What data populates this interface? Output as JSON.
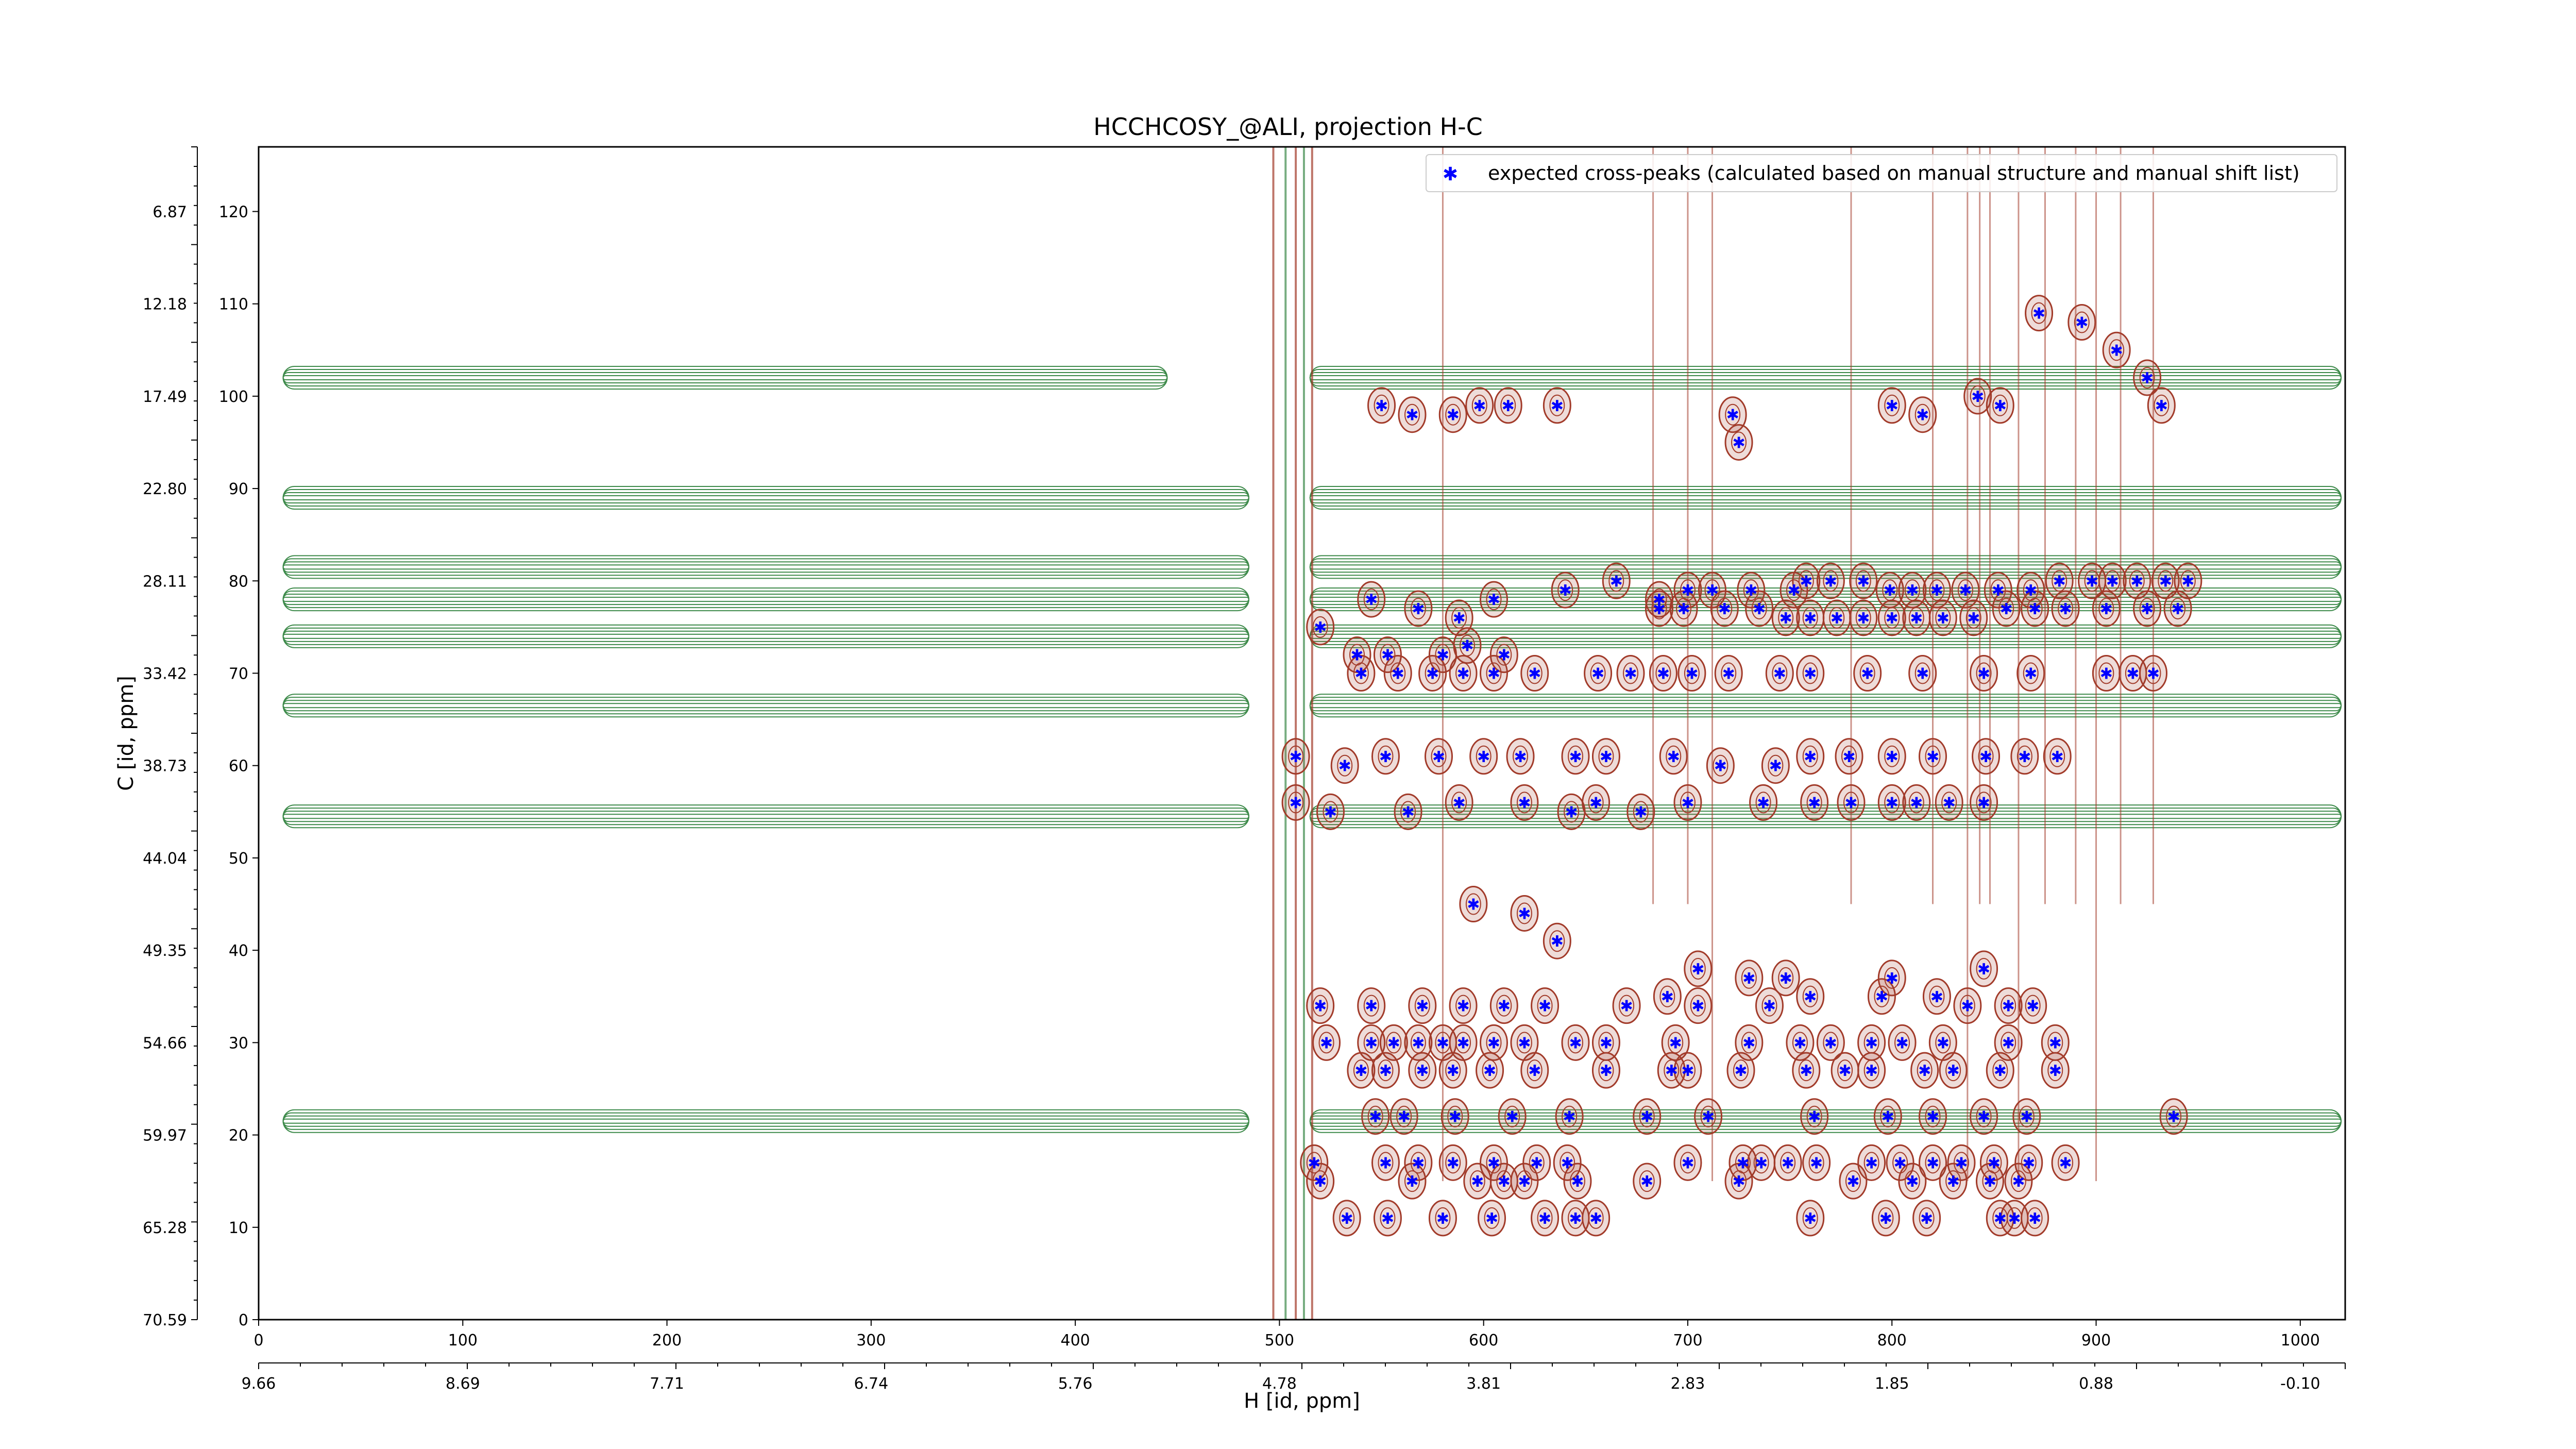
{
  "chart_data": {
    "type": "scatter",
    "title": "HCCHCOSY_@ALI, projection H-C",
    "xlabel": "H [id, ppm]",
    "ylabel": "C [id, ppm]",
    "xlim": [
      0,
      1022
    ],
    "ylim": [
      0,
      127
    ],
    "x_ticks_top": [
      "0",
      "100",
      "200",
      "300",
      "400",
      "500",
      "600",
      "700",
      "800",
      "900",
      "1000"
    ],
    "x_ticks_top_values": [
      0,
      100,
      200,
      300,
      400,
      500,
      600,
      700,
      800,
      900,
      1000
    ],
    "x_ticks_ppm": [
      "9.66",
      "8.69",
      "7.71",
      "6.74",
      "5.76",
      "4.78",
      "3.81",
      "2.83",
      "1.85",
      "0.88",
      "-0.10"
    ],
    "y_ticks_right": [
      "0",
      "10",
      "20",
      "30",
      "40",
      "50",
      "60",
      "70",
      "80",
      "90",
      "100",
      "110",
      "120"
    ],
    "y_ticks_right_values": [
      0,
      10,
      20,
      30,
      40,
      50,
      60,
      70,
      80,
      90,
      100,
      110,
      120
    ],
    "y_ticks_ppm": [
      "70.59",
      "65.28",
      "59.97",
      "54.66",
      "49.35",
      "44.04",
      "38.73",
      "33.42",
      "28.11",
      "22.80",
      "17.49",
      "12.18",
      "6.87"
    ],
    "legend": {
      "position": "top-right",
      "label": "expected cross-peaks (calculated based on manual structure and manual shift list)"
    },
    "colors": {
      "expected_marker": "#0000ff",
      "positive_contour": "#a23b2a",
      "negative_contour": "#3d8a4a"
    },
    "contour_bands_y": [
      102,
      89,
      81.5,
      78,
      74,
      66.5,
      54.5,
      21.5
    ],
    "expected_peaks": {
      "x": [
        550,
        565,
        585,
        598,
        612,
        636,
        722,
        725,
        800,
        815,
        842,
        853,
        872,
        893,
        910,
        925,
        932,
        520,
        545,
        568,
        588,
        605,
        640,
        665,
        686,
        700,
        712,
        731,
        752,
        758,
        770,
        786,
        799,
        810,
        822,
        836,
        852,
        868,
        882,
        898,
        908,
        920,
        934,
        945,
        538,
        553,
        580,
        592,
        610,
        686,
        698,
        718,
        735,
        748,
        760,
        773,
        786,
        800,
        812,
        825,
        840,
        856,
        870,
        885,
        905,
        925,
        940,
        540,
        558,
        575,
        590,
        605,
        625,
        656,
        672,
        688,
        702,
        720,
        745,
        760,
        788,
        815,
        845,
        868,
        905,
        918,
        928,
        508,
        532,
        552,
        578,
        600,
        618,
        645,
        660,
        693,
        716,
        743,
        760,
        779,
        800,
        820,
        846,
        865,
        881,
        508,
        525,
        563,
        588,
        620,
        643,
        655,
        677,
        700,
        737,
        762,
        780,
        800,
        812,
        828,
        845,
        520,
        545,
        570,
        590,
        610,
        630,
        670,
        690,
        705,
        740,
        760,
        795,
        822,
        837,
        857,
        869,
        523,
        545,
        556,
        568,
        580,
        590,
        605,
        620,
        645,
        660,
        694,
        730,
        755,
        770,
        790,
        805,
        825,
        857,
        880,
        595,
        620,
        636,
        705,
        730,
        748,
        800,
        845,
        540,
        552,
        570,
        585,
        603,
        625,
        660,
        692,
        700,
        726,
        758,
        777,
        790,
        816,
        830,
        853,
        880,
        547,
        561,
        586,
        614,
        642,
        680,
        710,
        762,
        798,
        820,
        845,
        866,
        938,
        517,
        552,
        568,
        585,
        605,
        626,
        641,
        700,
        727,
        736,
        749,
        763,
        790,
        804,
        820,
        834,
        850,
        867,
        885,
        520,
        565,
        597,
        610,
        620,
        646,
        680,
        725,
        781,
        810,
        830,
        848,
        862,
        533,
        553,
        580,
        604,
        630,
        645,
        655,
        760,
        797,
        817,
        853,
        860,
        870
      ],
      "y": [
        99,
        98,
        98,
        99,
        99,
        99,
        98,
        95,
        99,
        98,
        100,
        99,
        109,
        108,
        105,
        102,
        99,
        75,
        78,
        77,
        76,
        78,
        79,
        80,
        78,
        79,
        79,
        79,
        79,
        80,
        80,
        80,
        79,
        79,
        79,
        79,
        79,
        79,
        80,
        80,
        80,
        80,
        80,
        80,
        72,
        72,
        72,
        73,
        72,
        77,
        77,
        77,
        77,
        76,
        76,
        76,
        76,
        76,
        76,
        76,
        76,
        77,
        77,
        77,
        77,
        77,
        77,
        70,
        70,
        70,
        70,
        70,
        70,
        70,
        70,
        70,
        70,
        70,
        70,
        70,
        70,
        70,
        70,
        70,
        70,
        70,
        70,
        61,
        60,
        61,
        61,
        61,
        61,
        61,
        61,
        61,
        60,
        60,
        61,
        61,
        61,
        61,
        61,
        61,
        61,
        56,
        55,
        55,
        56,
        56,
        55,
        56,
        55,
        56,
        56,
        56,
        56,
        56,
        56,
        56,
        56,
        34,
        34,
        34,
        34,
        34,
        34,
        34,
        35,
        34,
        34,
        35,
        35,
        35,
        34,
        34,
        34,
        30,
        30,
        30,
        30,
        30,
        30,
        30,
        30,
        30,
        30,
        30,
        30,
        30,
        30,
        30,
        30,
        30,
        30,
        30,
        45,
        44,
        41,
        38,
        37,
        37,
        37,
        38,
        27,
        27,
        27,
        27,
        27,
        27,
        27,
        27,
        27,
        27,
        27,
        27,
        27,
        27,
        27,
        27,
        27,
        22,
        22,
        22,
        22,
        22,
        22,
        22,
        22,
        22,
        22,
        22,
        22,
        22,
        17,
        17,
        17,
        17,
        17,
        17,
        17,
        17,
        17,
        17,
        17,
        17,
        17,
        17,
        17,
        17,
        17,
        17,
        17,
        15,
        15,
        15,
        15,
        15,
        15,
        15,
        15,
        15,
        15,
        15,
        15,
        15,
        11,
        11,
        11,
        11,
        11,
        11,
        11,
        11,
        11,
        11,
        11,
        11,
        11
      ]
    }
  }
}
